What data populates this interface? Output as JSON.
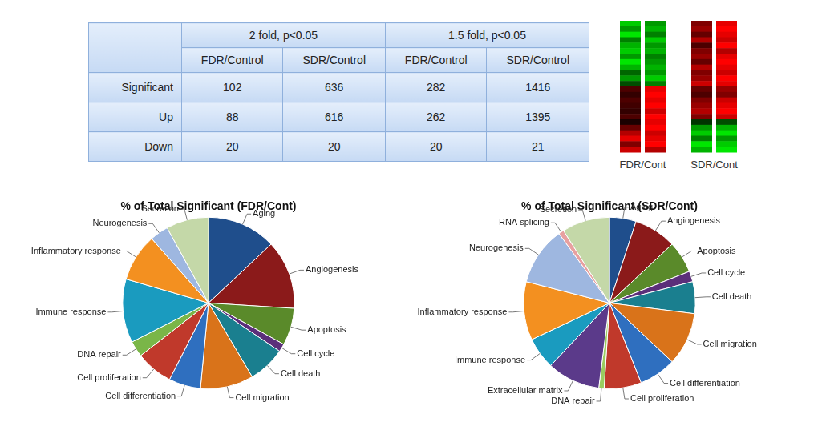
{
  "table": {
    "header": [
      "2 fold, p<0.05",
      "1.5 fold, p<0.05"
    ],
    "subheader": [
      "FDR/Control",
      "SDR/Control",
      "FDR/Control",
      "SDR/Control"
    ],
    "rows": [
      [
        "Significant",
        102,
        636,
        282,
        1416
      ],
      [
        "Up",
        88,
        616,
        262,
        1395
      ],
      [
        "Down",
        20,
        20,
        20,
        21
      ]
    ]
  },
  "heatmap": {
    "zlim": [
      -1,
      1
    ],
    "groups": [
      {
        "label": "FDR/Cont",
        "columns": [
          [
            -0.8,
            -0.6,
            -0.9,
            -0.5,
            -0.7,
            -0.8,
            -0.6,
            -0.9,
            -0.7,
            -0.4,
            -0.6,
            -0.3,
            0.3,
            0.2,
            0.3,
            0.25,
            0.2,
            0.3,
            0.1,
            0.4,
            0.7,
            0.9,
            0.5,
            0.8
          ],
          [
            -0.6,
            -0.7,
            -0.5,
            -0.8,
            -0.6,
            -0.7,
            -0.5,
            -0.6,
            -0.7,
            -0.6,
            -0.8,
            -0.5,
            0.9,
            1,
            0.9,
            1,
            0.8,
            1,
            0.9,
            1,
            0.8,
            0.9,
            1,
            0.7
          ]
        ]
      },
      {
        "label": "SDR/Cont",
        "columns": [
          [
            0.5,
            0.6,
            0.4,
            0.7,
            0.3,
            0.5,
            0.6,
            0.4,
            0.7,
            0.5,
            0.6,
            0.8,
            0.4,
            0.3,
            0.5,
            0.6,
            0.7,
            0.5,
            -0.2,
            -0.6,
            -0.8,
            -0.5,
            -0.9,
            -0.7
          ],
          [
            0.9,
            1,
            0.9,
            0.8,
            1,
            0.7,
            0.9,
            1,
            0.9,
            0.8,
            1,
            0.9,
            0.6,
            0.5,
            0.8,
            0.9,
            1,
            0.8,
            -0.3,
            -0.7,
            -0.9,
            -0.6,
            -0.8,
            -0.9
          ]
        ]
      }
    ]
  },
  "chart_data": [
    {
      "type": "pie",
      "title": "% of Total Significant (FDR/Cont)",
      "categories": [
        "Aging",
        "Angiogenesis",
        "Apoptosis",
        "Cell cycle",
        "Cell death",
        "Cell migration",
        "Cell differentiation",
        "Cell proliferation",
        "DNA repair",
        "Immune response",
        "Inflammatory response",
        "Neurogenesis",
        "Secretion"
      ],
      "values": [
        13,
        13,
        7,
        1.5,
        7,
        10,
        6,
        7,
        3,
        12,
        9,
        3.5,
        8
      ],
      "colors": [
        "#1f4e8c",
        "#8b1a1a",
        "#5a8a2a",
        "#5b2f7a",
        "#1a7f8f",
        "#d9731a",
        "#2f6fbf",
        "#c0392b",
        "#7ab648",
        "#1a9bbf",
        "#f39020",
        "#9eb7e0",
        "#c4d8a8"
      ]
    },
    {
      "type": "pie",
      "title": "% of Total Significant (SDR/Cont)",
      "categories": [
        "Aging",
        "Angiogenesis",
        "Apoptosis",
        "Cell cycle",
        "Cell death",
        "Cell migration",
        "Cell differentiation",
        "Cell proliferation",
        "DNA repair",
        "Extracellular matrix",
        "Immune response",
        "Inflammatory response",
        "Neurogenesis",
        "RNA splicing",
        "Secretion"
      ],
      "values": [
        5,
        8,
        6,
        2,
        6,
        10,
        7,
        7,
        1,
        10,
        6,
        11,
        11,
        1,
        9
      ],
      "colors": [
        "#1f4e8c",
        "#8b1a1a",
        "#5a8a2a",
        "#5b2f7a",
        "#1a7f8f",
        "#d9731a",
        "#2f6fbf",
        "#c0392b",
        "#9acd60",
        "#5b3a8a",
        "#1a9bbf",
        "#f39020",
        "#9eb7e0",
        "#e8a0a0",
        "#c4d8a8"
      ]
    }
  ]
}
